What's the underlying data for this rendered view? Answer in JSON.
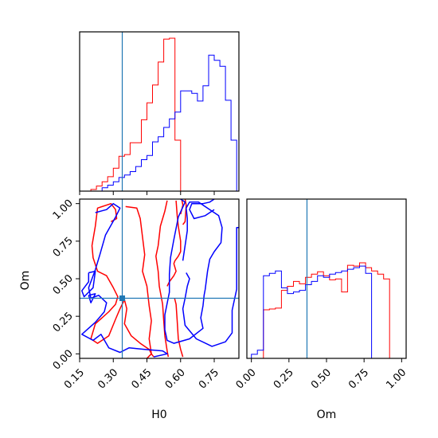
{
  "chart_data": {
    "type": "corner",
    "parameters": [
      "H0",
      "Om"
    ],
    "xlabel_H0": "H0",
    "xlabel_Om": "Om",
    "ylabel_Om": "Om",
    "truth": {
      "H0": 0.34,
      "Om": 0.37
    },
    "colors": {
      "red": "#ff0000",
      "blue": "#0000ff",
      "truth": "#1f77b4",
      "frame": "#000000"
    },
    "ticks": {
      "H0": {
        "values": [
          0.15,
          0.3,
          0.45,
          0.6,
          0.75
        ],
        "labels": [
          "0.15",
          "0.30",
          "0.45",
          "0.60",
          "0.75"
        ]
      },
      "Om": {
        "values": [
          0.0,
          0.25,
          0.5,
          0.75,
          1.0
        ],
        "labels": [
          "0.00",
          "0.25",
          "0.50",
          "0.75",
          "1.00"
        ]
      }
    },
    "ranges": {
      "H0": [
        0.15,
        0.86
      ],
      "Om": [
        -0.03,
        1.03
      ]
    },
    "hist_H0": {
      "bins_start": 0.15,
      "bin_width": 0.025,
      "series": [
        {
          "color": "#ff0000",
          "counts": [
            0,
            0,
            2,
            6,
            11,
            17,
            27,
            41,
            43,
            57,
            57,
            84,
            104,
            125,
            152,
            179,
            180,
            60,
            0,
            0,
            0,
            0,
            0,
            0,
            0,
            0,
            0,
            0
          ]
        },
        {
          "color": "#0000ff",
          "counts": [
            0,
            0,
            0,
            0,
            4,
            7,
            11,
            16,
            19,
            23,
            29,
            37,
            42,
            58,
            64,
            75,
            85,
            93,
            118,
            118,
            115,
            106,
            124,
            160,
            154,
            147,
            107,
            60
          ]
        }
      ]
    },
    "hist_Om": {
      "bins_start": -0.04,
      "bin_width": 0.04,
      "series": [
        {
          "color": "#ff0000",
          "counts": [
            0,
            0,
            0,
            60,
            61,
            62,
            84,
            89,
            95,
            92,
            100,
            104,
            107,
            102,
            97,
            98,
            82,
            115,
            114,
            118,
            112,
            108,
            104,
            98,
            0,
            0
          ]
        },
        {
          "color": "#0000ff",
          "counts": [
            0,
            5,
            10,
            102,
            105,
            108,
            87,
            80,
            82,
            84,
            91,
            95,
            102,
            100,
            104,
            106,
            108,
            110,
            112,
            114,
            105,
            0,
            0,
            0,
            0,
            0
          ]
        }
      ]
    },
    "contours": [
      {
        "color": "#ff0000",
        "points": [
          [
            0.29,
            0.88
          ],
          [
            0.315,
            0.9
          ],
          [
            0.31,
            0.96
          ],
          [
            0.29,
            1.0
          ],
          [
            0.23,
            0.97
          ],
          [
            0.22,
            0.85
          ],
          [
            0.205,
            0.72
          ],
          [
            0.21,
            0.64
          ],
          [
            0.23,
            0.55
          ],
          [
            0.27,
            0.52
          ],
          [
            0.3,
            0.44
          ],
          [
            0.32,
            0.38
          ],
          [
            0.31,
            0.33
          ],
          [
            0.28,
            0.28
          ],
          [
            0.22,
            0.2
          ],
          [
            0.2,
            0.1
          ],
          [
            0.23,
            0.07
          ],
          [
            0.28,
            0.12
          ],
          [
            0.31,
            0.23
          ],
          [
            0.33,
            0.3
          ],
          [
            0.35,
            0.36
          ],
          [
            0.36,
            0.3
          ],
          [
            0.35,
            0.2
          ],
          [
            0.38,
            0.12
          ],
          [
            0.42,
            0.07
          ],
          [
            0.46,
            0.03
          ],
          [
            0.47,
            0.0
          ],
          [
            0.45,
            -0.03
          ]
        ]
      },
      {
        "color": "#ff0000",
        "points": [
          [
            0.355,
            0.98
          ],
          [
            0.405,
            0.97
          ],
          [
            0.42,
            0.9
          ],
          [
            0.43,
            0.78
          ],
          [
            0.44,
            0.66
          ],
          [
            0.43,
            0.55
          ],
          [
            0.45,
            0.45
          ],
          [
            0.46,
            0.32
          ],
          [
            0.47,
            0.22
          ],
          [
            0.46,
            0.1
          ],
          [
            0.47,
            0.0
          ],
          [
            0.48,
            -0.02
          ]
        ]
      },
      {
        "color": "#ff0000",
        "points": [
          [
            0.54,
            1.02
          ],
          [
            0.53,
            0.95
          ],
          [
            0.51,
            0.85
          ],
          [
            0.5,
            0.72
          ],
          [
            0.49,
            0.65
          ],
          [
            0.5,
            0.55
          ],
          [
            0.505,
            0.45
          ],
          [
            0.52,
            0.33
          ],
          [
            0.525,
            0.22
          ],
          [
            0.53,
            0.12
          ],
          [
            0.54,
            0.02
          ],
          [
            0.545,
            -0.02
          ]
        ]
      },
      {
        "color": "#ff0000",
        "points": [
          [
            0.54,
            0.45
          ],
          [
            0.55,
            0.48
          ],
          [
            0.57,
            0.52
          ],
          [
            0.58,
            0.55
          ],
          [
            0.57,
            0.6
          ],
          [
            0.575,
            0.62
          ],
          [
            0.59,
            0.65
          ],
          [
            0.6,
            0.68
          ],
          [
            0.6,
            0.75
          ],
          [
            0.59,
            0.85
          ],
          [
            0.585,
            0.92
          ],
          [
            0.58,
            1.02
          ]
        ]
      },
      {
        "color": "#ff0000",
        "points": [
          [
            0.573,
            0.37
          ],
          [
            0.58,
            0.33
          ],
          [
            0.585,
            0.22
          ],
          [
            0.59,
            0.1
          ],
          [
            0.6,
            0.03
          ],
          [
            0.61,
            -0.02
          ]
        ]
      },
      {
        "color": "#ff0000",
        "points": [
          [
            0.6,
            0.93
          ],
          [
            0.61,
            0.99
          ],
          [
            0.605,
            1.03
          ]
        ]
      },
      {
        "color": "#ff0000",
        "points": [
          [
            0.61,
            0.86
          ],
          [
            0.62,
            0.88
          ],
          [
            0.625,
            0.99
          ],
          [
            0.62,
            1.03
          ]
        ]
      },
      {
        "color": "#0000ff",
        "points": [
          [
            0.22,
            0.94
          ],
          [
            0.27,
            0.96
          ],
          [
            0.3,
            1.0
          ],
          [
            0.33,
            0.97
          ],
          [
            0.31,
            0.91
          ],
          [
            0.265,
            0.79
          ],
          [
            0.24,
            0.66
          ],
          [
            0.22,
            0.56
          ],
          [
            0.19,
            0.44
          ],
          [
            0.2,
            0.37
          ],
          [
            0.235,
            0.39
          ],
          [
            0.27,
            0.34
          ],
          [
            0.26,
            0.28
          ],
          [
            0.22,
            0.21
          ],
          [
            0.16,
            0.13
          ],
          [
            0.21,
            0.09
          ],
          [
            0.245,
            0.13
          ],
          [
            0.28,
            0.04
          ],
          [
            0.33,
            0.01
          ],
          [
            0.37,
            0.04
          ],
          [
            0.44,
            0.03
          ],
          [
            0.52,
            0.02
          ],
          [
            0.54,
            0.0
          ],
          [
            0.48,
            -0.02
          ]
        ]
      },
      {
        "color": "#0000ff",
        "points": [
          [
            0.19,
            0.54
          ],
          [
            0.22,
            0.55
          ],
          [
            0.21,
            0.44
          ],
          [
            0.17,
            0.38
          ],
          [
            0.16,
            0.42
          ],
          [
            0.19,
            0.48
          ],
          [
            0.19,
            0.54
          ]
        ]
      },
      {
        "color": "#0000ff",
        "points": [
          [
            0.19,
            0.39
          ],
          [
            0.22,
            0.4
          ],
          [
            0.2,
            0.34
          ],
          [
            0.19,
            0.39
          ]
        ]
      },
      {
        "color": "#0000ff",
        "points": [
          [
            0.6,
            1.03
          ],
          [
            0.62,
            1.01
          ],
          [
            0.59,
            0.91
          ],
          [
            0.57,
            0.76
          ],
          [
            0.555,
            0.64
          ],
          [
            0.55,
            0.53
          ],
          [
            0.55,
            0.41
          ],
          [
            0.53,
            0.26
          ],
          [
            0.53,
            0.16
          ],
          [
            0.54,
            0.09
          ],
          [
            0.57,
            0.07
          ],
          [
            0.64,
            0.1
          ],
          [
            0.7,
            0.17
          ],
          [
            0.69,
            0.24
          ],
          [
            0.7,
            0.32
          ],
          [
            0.705,
            0.39
          ],
          [
            0.71,
            0.43
          ],
          [
            0.72,
            0.55
          ],
          [
            0.73,
            0.63
          ],
          [
            0.75,
            0.68
          ],
          [
            0.78,
            0.74
          ],
          [
            0.785,
            0.84
          ],
          [
            0.77,
            0.92
          ],
          [
            0.73,
            0.96
          ],
          [
            0.68,
            1.01
          ],
          [
            0.64,
            1.01
          ],
          [
            0.625,
            0.97
          ],
          [
            0.63,
            0.9
          ],
          [
            0.63,
            0.82
          ],
          [
            0.62,
            0.72
          ],
          [
            0.61,
            0.62
          ]
        ]
      },
      {
        "color": "#0000ff",
        "points": [
          [
            0.625,
            0.54
          ],
          [
            0.64,
            0.5
          ],
          [
            0.63,
            0.45
          ],
          [
            0.62,
            0.37
          ],
          [
            0.61,
            0.3
          ],
          [
            0.62,
            0.19
          ],
          [
            0.67,
            0.1
          ],
          [
            0.74,
            0.05
          ],
          [
            0.8,
            0.08
          ],
          [
            0.83,
            0.14
          ],
          [
            0.83,
            0.29
          ],
          [
            0.85,
            0.43
          ],
          [
            0.85,
            0.84
          ],
          [
            0.86,
            0.84
          ]
        ]
      },
      {
        "color": "#0000ff",
        "points": [
          [
            0.75,
            1.03
          ],
          [
            0.73,
            1.01
          ],
          [
            0.7,
            1.0
          ],
          [
            0.65,
            1.0
          ],
          [
            0.64,
            0.96
          ],
          [
            0.66,
            0.9
          ],
          [
            0.71,
            0.92
          ],
          [
            0.75,
            0.96
          ]
        ]
      }
    ]
  }
}
